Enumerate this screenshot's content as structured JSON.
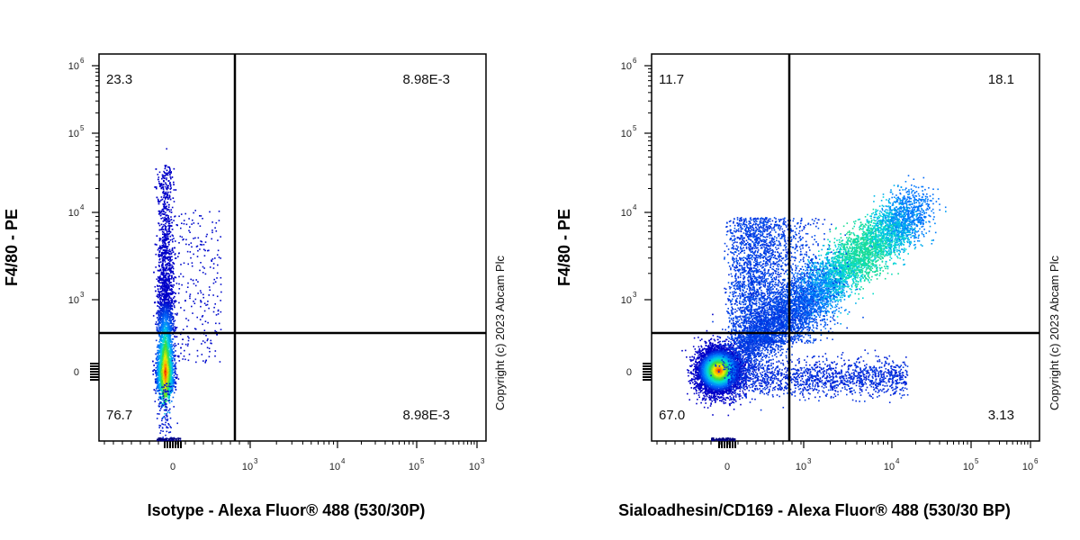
{
  "chart_data": [
    {
      "type": "scatter",
      "subtype": "flow-cytometry-density-dot-plot",
      "xlabel": "Isotype - Alexa Fluor® 488 (530/30P)",
      "ylabel": "F4/80 - PE",
      "x_scale": "biexponential",
      "y_scale": "biexponential",
      "x_tick_labels": [
        "0",
        "10",
        "10",
        "10",
        "10"
      ],
      "x_tick_exponents": [
        "",
        "3",
        "4",
        "5",
        "3"
      ],
      "y_tick_labels": [
        "0",
        "10",
        "10",
        "10",
        "10"
      ],
      "y_tick_exponents": [
        "",
        "3",
        "4",
        "5",
        "6"
      ],
      "gate": {
        "x": 800,
        "y": 350
      },
      "quadrants": {
        "top_left": "23.3",
        "top_right": "8.98E-3",
        "bottom_left": "76.7",
        "bottom_right": "8.98E-3"
      },
      "populations": [
        {
          "name": "",
          "x_center": -20,
          "y_center": 30,
          "share": 0.8
        }
      ],
      "copyright": "Copyright (c) 2023 Abcam Plc"
    },
    {
      "type": "scatter",
      "subtype": "flow-cytometry-density-dot-plot",
      "xlabel": "Sialoadhesin/CD169 - Alexa Fluor® 488 (530/30 BP)",
      "ylabel": "F4/80 - PE",
      "x_scale": "biexponential",
      "y_scale": "biexponential",
      "x_tick_labels": [
        "0",
        "10",
        "10",
        "10",
        "10"
      ],
      "x_tick_exponents": [
        "",
        "3",
        "4",
        "5",
        "6"
      ],
      "y_tick_labels": [
        "0",
        "10",
        "10",
        "10",
        "10"
      ],
      "y_tick_exponents": [
        "",
        "3",
        "4",
        "5",
        "6"
      ],
      "gate": {
        "x": 800,
        "y": 350
      },
      "quadrants": {
        "top_left": "11.7",
        "top_right": "18.1",
        "bottom_left": "67.0",
        "bottom_right": "3.13"
      },
      "populations": [
        {
          "name": "",
          "x_center": -50,
          "y_center": 30,
          "share": 0.67
        },
        {
          "name": "",
          "x_center": 3000,
          "y_center": 2000,
          "share": 0.18
        }
      ],
      "copyright": "Copyright (c) 2023 Abcam Plc"
    }
  ]
}
